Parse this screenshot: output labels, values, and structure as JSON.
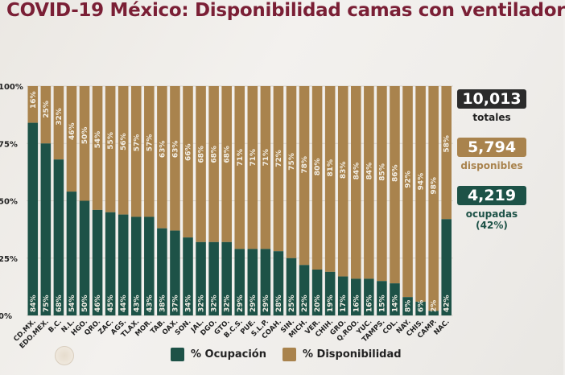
{
  "title": "COVID-19 México: Disponibilidad camas con ventilador",
  "colors": {
    "ocupacion": "#1d5247",
    "disponibilidad": "#a9834d",
    "totales": "#2b2b2b",
    "title": "#7a1f35"
  },
  "summary": {
    "totales": {
      "value": "10,013",
      "label": "totales"
    },
    "disponibles": {
      "value": "5,794",
      "label": "disponibles"
    },
    "ocupadas": {
      "value": "4,219",
      "label": "ocupadas",
      "pct": "(42%)"
    }
  },
  "legend": {
    "ocupacion": "% Ocupación",
    "disponibilidad": "% Disponibilidad"
  },
  "chart_data": {
    "type": "bar",
    "stacked": true,
    "title": "COVID-19 México: Disponibilidad camas con ventilador",
    "xlabel": "",
    "ylabel": "",
    "ylim": [
      0,
      100
    ],
    "yticks": [
      "0%",
      "25%",
      "50%",
      "75%",
      "100%"
    ],
    "grid": true,
    "legend_position": "bottom",
    "categories": [
      "CD.MX.",
      "EDO.MEX.",
      "B.C.",
      "N.L.",
      "HGO.",
      "QRO.",
      "ZAC.",
      "AGS.",
      "TLAX.",
      "MOR.",
      "TAB.",
      "OAX.",
      "SON.",
      "JAL.",
      "DGO.",
      "GTO.",
      "B.C.S.",
      "PUE.",
      "S.L.P.",
      "COAH.",
      "SIN.",
      "MICH.",
      "VER.",
      "CHIH.",
      "GRO.",
      "Q.ROO.",
      "YUC.",
      "TAMPS.",
      "COL.",
      "NAY.",
      "CHIS.",
      "CAMP.",
      "NAC."
    ],
    "series": [
      {
        "name": "% Ocupación",
        "values": [
          84,
          75,
          68,
          54,
          50,
          46,
          45,
          44,
          43,
          43,
          38,
          37,
          34,
          32,
          32,
          32,
          29,
          29,
          29,
          28,
          25,
          22,
          20,
          19,
          17,
          16,
          16,
          15,
          14,
          8,
          6,
          2,
          42
        ]
      },
      {
        "name": "% Disponibilidad",
        "values": [
          16,
          25,
          32,
          46,
          50,
          54,
          55,
          56,
          57,
          57,
          63,
          63,
          66,
          68,
          68,
          68,
          71,
          71,
          71,
          72,
          75,
          78,
          80,
          81,
          83,
          84,
          84,
          85,
          86,
          92,
          94,
          98,
          58
        ]
      }
    ]
  }
}
